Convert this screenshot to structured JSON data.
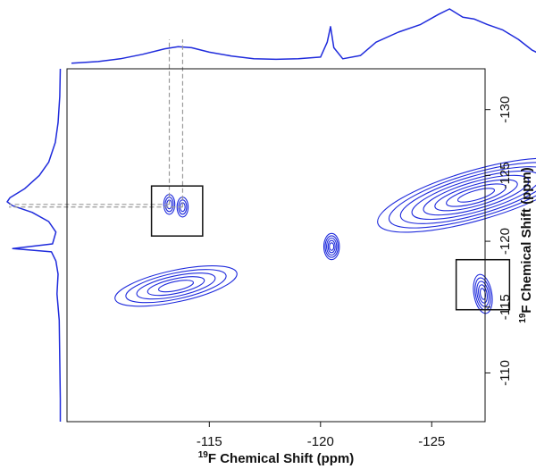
{
  "chart_data": {
    "type": "contour",
    "xlabel": "Chemical Shift (ppm)",
    "ylabel": "Chemical Shift (ppm)",
    "axis_nucleus_superscript": "19",
    "axis_nucleus": "F",
    "xlim": [
      -108.6,
      -127.4
    ],
    "ylim": [
      -133.1,
      -106.3
    ],
    "x_ticks": [
      -115,
      -120,
      -125
    ],
    "y_ticks": [
      -130,
      -125,
      -120,
      -115,
      -110
    ],
    "x_tick_labels": [
      "-115",
      "-120",
      "-125"
    ],
    "y_tick_labels": [
      "-130",
      "-125",
      "-120",
      "-115",
      "-110"
    ],
    "contour_color": "#1f2bdc",
    "guide_color": "#9a9a9a",
    "peaks": [
      {
        "x": -113.8,
        "y": -122.6
      },
      {
        "x": -113.2,
        "y": -122.8
      },
      {
        "x": -120.5,
        "y": -119.6
      },
      {
        "x": -127.3,
        "y": -116.0
      },
      {
        "x": -113.5,
        "y": -116.6
      },
      {
        "x": -127.0,
        "y": -123.5
      }
    ],
    "boxed_regions": [
      {
        "x": [
          -112.4,
          -114.7
        ],
        "y": [
          -124.2,
          -120.4
        ]
      },
      {
        "x": [
          -126.1,
          -128.5
        ],
        "y": [
          -118.6,
          -114.8
        ]
      }
    ],
    "top_projection": [
      {
        "x": -108.8,
        "y": 0.02
      },
      {
        "x": -110.0,
        "y": 0.05
      },
      {
        "x": -111.0,
        "y": 0.1
      },
      {
        "x": -112.0,
        "y": 0.18
      },
      {
        "x": -113.0,
        "y": 0.28
      },
      {
        "x": -113.6,
        "y": 0.32
      },
      {
        "x": -114.2,
        "y": 0.3
      },
      {
        "x": -115.0,
        "y": 0.22
      },
      {
        "x": -116.0,
        "y": 0.15
      },
      {
        "x": -117.0,
        "y": 0.1
      },
      {
        "x": -118.0,
        "y": 0.09
      },
      {
        "x": -119.0,
        "y": 0.1
      },
      {
        "x": -120.0,
        "y": 0.13
      },
      {
        "x": -120.3,
        "y": 0.4
      },
      {
        "x": -120.45,
        "y": 0.68
      },
      {
        "x": -120.6,
        "y": 0.3
      },
      {
        "x": -121.0,
        "y": 0.1
      },
      {
        "x": -121.8,
        "y": 0.16
      },
      {
        "x": -122.5,
        "y": 0.4
      },
      {
        "x": -123.5,
        "y": 0.58
      },
      {
        "x": -124.5,
        "y": 0.72
      },
      {
        "x": -125.3,
        "y": 0.9
      },
      {
        "x": -125.8,
        "y": 1.0
      },
      {
        "x": -126.4,
        "y": 0.85
      },
      {
        "x": -126.9,
        "y": 0.82
      },
      {
        "x": -127.5,
        "y": 0.72
      },
      {
        "x": -128.2,
        "y": 0.62
      },
      {
        "x": -128.9,
        "y": 0.45
      },
      {
        "x": -129.5,
        "y": 0.26
      },
      {
        "x": -130.2,
        "y": 0.12
      },
      {
        "x": -131.0,
        "y": 0.06
      },
      {
        "x": -132.0,
        "y": 0.04
      },
      {
        "x": -133.0,
        "y": 0.03
      }
    ],
    "left_projection": [
      {
        "y": -133.1,
        "v": 0.04
      },
      {
        "y": -131.0,
        "v": 0.05
      },
      {
        "y": -129.0,
        "v": 0.08
      },
      {
        "y": -127.5,
        "v": 0.13
      },
      {
        "y": -126.0,
        "v": 0.25
      },
      {
        "y": -125.0,
        "v": 0.42
      },
      {
        "y": -124.0,
        "v": 0.68
      },
      {
        "y": -123.3,
        "v": 0.95
      },
      {
        "y": -123.0,
        "v": 1.0
      },
      {
        "y": -122.7,
        "v": 0.9
      },
      {
        "y": -122.2,
        "v": 0.55
      },
      {
        "y": -121.5,
        "v": 0.25
      },
      {
        "y": -120.7,
        "v": 0.12
      },
      {
        "y": -119.8,
        "v": 0.18
      },
      {
        "y": -119.45,
        "v": 0.9
      },
      {
        "y": -119.2,
        "v": 0.2
      },
      {
        "y": -118.5,
        "v": 0.12
      },
      {
        "y": -117.5,
        "v": 0.08
      },
      {
        "y": -116.0,
        "v": 0.1
      },
      {
        "y": -114.0,
        "v": 0.06
      },
      {
        "y": -111.0,
        "v": 0.05
      },
      {
        "y": -108.0,
        "v": 0.04
      },
      {
        "y": -106.3,
        "v": 0.04
      }
    ]
  }
}
